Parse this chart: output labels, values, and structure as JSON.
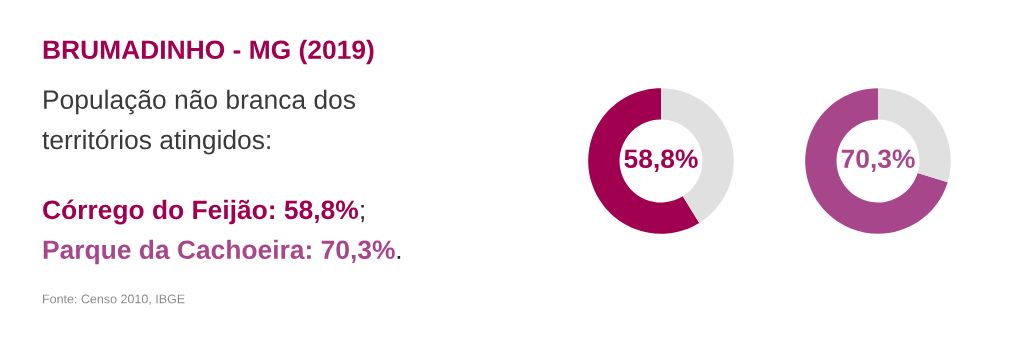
{
  "chart_data": [
    {
      "type": "other",
      "title": "BRUMADINHO - MG (2019)",
      "subtitle": "População não branca dos territórios atingidos:",
      "annotations": [
        "Córrego do Feijão: 58,8%;",
        "Parque da Cachoeira: 70,3%.",
        "Fonte: Censo 2010, IBGE"
      ]
    },
    {
      "type": "donut",
      "categories": [
        null,
        null
      ],
      "values": [
        58.8,
        41.2
      ],
      "colors": [
        "#a0004f",
        "#e0e0e0"
      ],
      "annotations": [
        "58,8%"
      ]
    },
    {
      "type": "donut",
      "categories": [
        null,
        null
      ],
      "values": [
        70.3,
        29.7
      ],
      "colors": [
        "#a8468c",
        "#e0e0e0"
      ],
      "annotations": [
        "70,3%"
      ]
    }
  ]
}
